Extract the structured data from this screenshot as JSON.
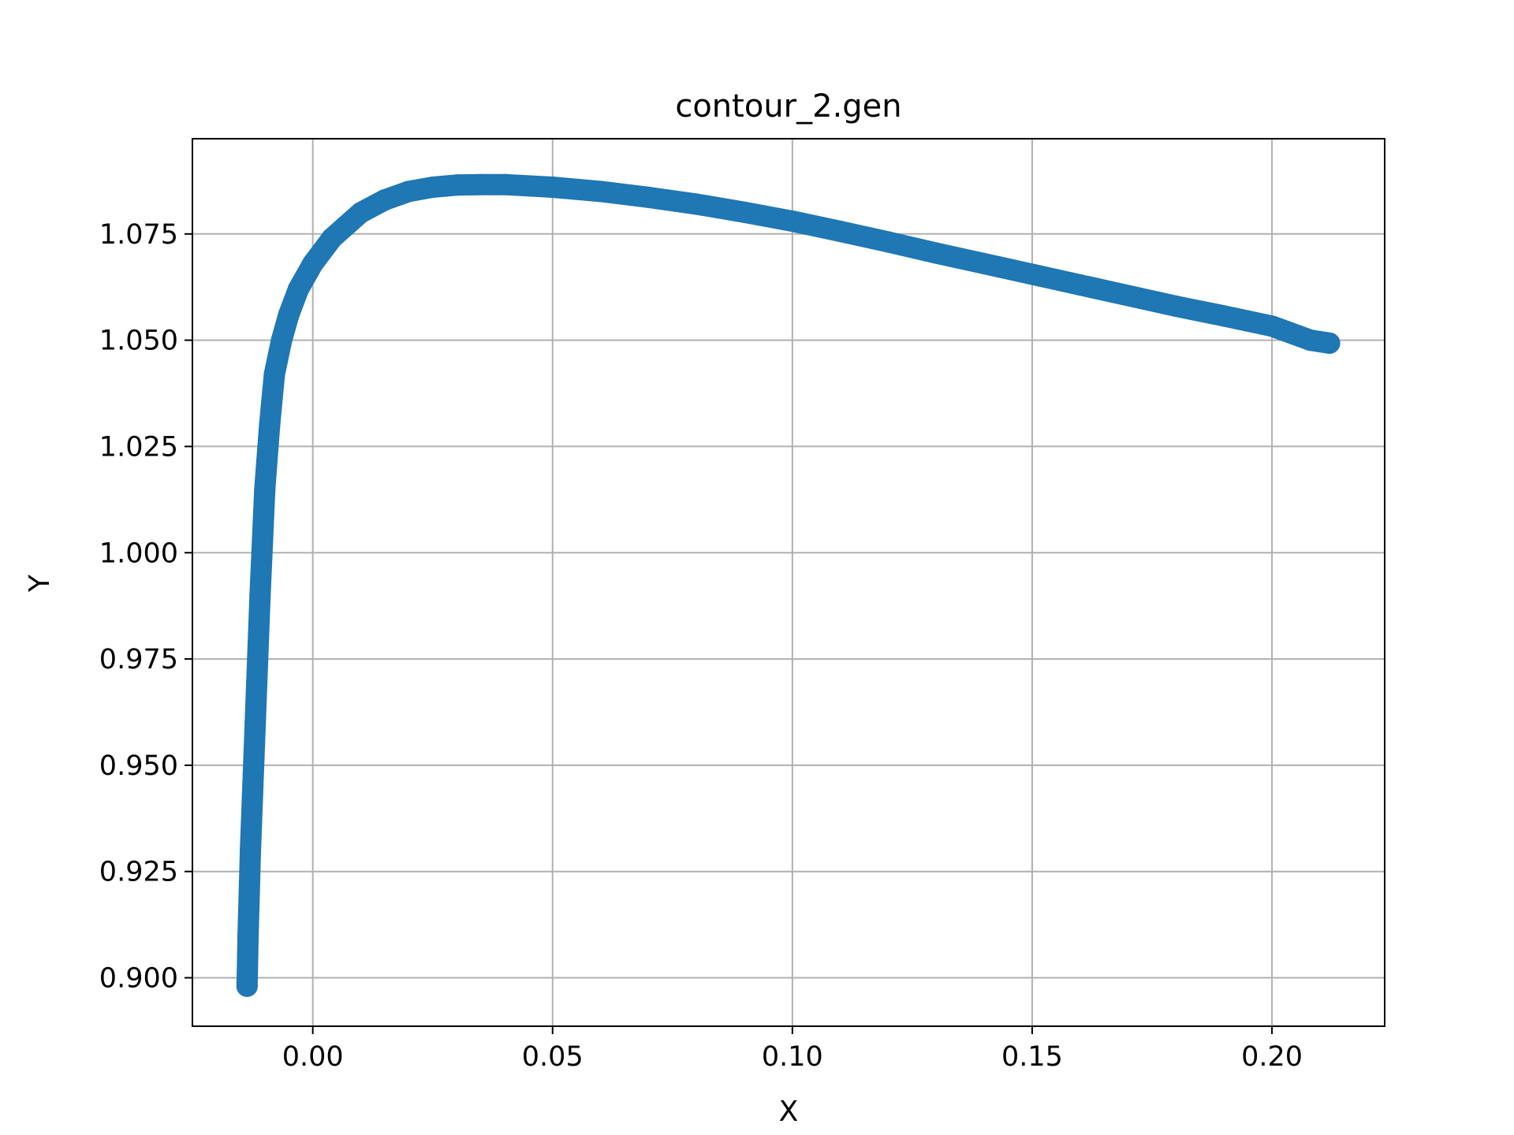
{
  "chart_data": {
    "type": "line",
    "title": "contour_2.gen",
    "xlabel": "X",
    "ylabel": "Y",
    "xlim": [
      -0.0251,
      0.2235
    ],
    "ylim": [
      0.8886,
      1.0974
    ],
    "xticks": [
      0.0,
      0.05,
      0.1,
      0.15,
      0.2
    ],
    "xtick_labels": [
      "0.00",
      "0.05",
      "0.10",
      "0.15",
      "0.20"
    ],
    "yticks": [
      0.9,
      0.925,
      0.95,
      0.975,
      1.0,
      1.025,
      1.05,
      1.075
    ],
    "ytick_labels": [
      "0.900",
      "0.925",
      "0.950",
      "0.975",
      "1.000",
      "1.025",
      "1.050",
      "1.075"
    ],
    "grid": true,
    "series": [
      {
        "color": "#1f77b4",
        "marker": "circle",
        "x": [
          -0.0137,
          -0.0135,
          -0.013,
          -0.012,
          -0.011,
          -0.01,
          -0.009,
          -0.008,
          -0.0065,
          -0.005,
          -0.003,
          0.0,
          0.004,
          0.01,
          0.015,
          0.02,
          0.025,
          0.03,
          0.035,
          0.04,
          0.05,
          0.06,
          0.07,
          0.08,
          0.09,
          0.1,
          0.11,
          0.12,
          0.13,
          0.14,
          0.15,
          0.16,
          0.17,
          0.18,
          0.19,
          0.2,
          0.208,
          0.212
        ],
        "y": [
          0.898,
          0.91,
          0.93,
          0.96,
          0.99,
          1.015,
          1.03,
          1.042,
          1.05,
          1.056,
          1.062,
          1.068,
          1.074,
          1.08,
          1.083,
          1.085,
          1.086,
          1.0865,
          1.0866,
          1.0866,
          1.086,
          1.085,
          1.0836,
          1.082,
          1.0801,
          1.078,
          1.0756,
          1.0731,
          1.0705,
          1.068,
          1.0655,
          1.063,
          1.0605,
          1.058,
          1.0557,
          1.0533,
          1.05,
          1.0493
        ]
      }
    ]
  }
}
